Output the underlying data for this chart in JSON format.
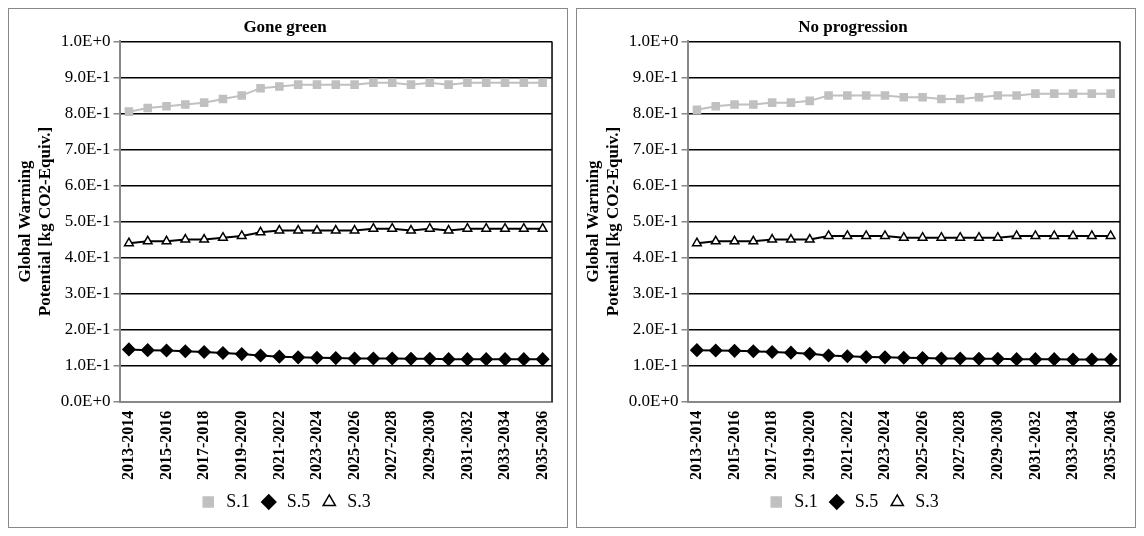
{
  "chart_data": [
    {
      "type": "line",
      "title": "Gone green",
      "ylabel": "Global Warming Potential [kg CO2-Equiv.]",
      "categories": [
        "2013-2014",
        null,
        "2015-2016",
        null,
        "2017-2018",
        null,
        "2019-2020",
        null,
        "2021-2022",
        null,
        "2023-2024",
        null,
        "2025-2026",
        null,
        "2027-2028",
        null,
        "2029-2030",
        null,
        "2031-2032",
        null,
        "2033-2034",
        null,
        "2035-2036"
      ],
      "ylim": [
        0,
        1
      ],
      "yticks": [
        {
          "value": 0,
          "label": "0.0E+0"
        },
        {
          "value": 0.1,
          "label": "1.0E-1"
        },
        {
          "value": 0.2,
          "label": "2.0E-1"
        },
        {
          "value": 0.3,
          "label": "3.0E-1"
        },
        {
          "value": 0.4,
          "label": "4.0E-1"
        },
        {
          "value": 0.5,
          "label": "5.0E-1"
        },
        {
          "value": 0.6,
          "label": "6.0E-1"
        },
        {
          "value": 0.7,
          "label": "7.0E-1"
        },
        {
          "value": 0.8,
          "label": "8.0E-1"
        },
        {
          "value": 0.9,
          "label": "9.0E-1"
        },
        {
          "value": 1,
          "label": "1.0E+0"
        }
      ],
      "grid": "y",
      "legend": "bottom",
      "series": [
        {
          "name": "S.1",
          "color": "#c0c0c0",
          "marker": "square",
          "values": [
            0.805,
            0.815,
            0.82,
            0.825,
            0.83,
            0.84,
            0.85,
            0.87,
            0.875,
            0.88,
            0.88,
            0.88,
            0.88,
            0.885,
            0.885,
            0.88,
            0.885,
            0.88,
            0.885,
            0.885,
            0.885,
            0.885,
            0.885
          ]
        },
        {
          "name": "S.5",
          "color": "#000000",
          "marker": "diamond",
          "values": [
            0.145,
            0.143,
            0.142,
            0.14,
            0.138,
            0.135,
            0.132,
            0.128,
            0.125,
            0.123,
            0.122,
            0.121,
            0.12,
            0.12,
            0.12,
            0.119,
            0.119,
            0.118,
            0.118,
            0.118,
            0.118,
            0.118,
            0.118
          ]
        },
        {
          "name": "S.3",
          "color": "#000000",
          "marker": "triangle",
          "values": [
            0.44,
            0.445,
            0.445,
            0.45,
            0.45,
            0.455,
            0.46,
            0.47,
            0.475,
            0.475,
            0.475,
            0.475,
            0.475,
            0.48,
            0.48,
            0.475,
            0.48,
            0.475,
            0.48,
            0.48,
            0.48,
            0.48,
            0.48
          ]
        }
      ]
    },
    {
      "type": "line",
      "title": "No progression",
      "ylabel": "Global Warming Potential [kg CO2-Equiv.]",
      "categories": [
        "2013-2014",
        null,
        "2015-2016",
        null,
        "2017-2018",
        null,
        "2019-2020",
        null,
        "2021-2022",
        null,
        "2023-2024",
        null,
        "2025-2026",
        null,
        "2027-2028",
        null,
        "2029-2030",
        null,
        "2031-2032",
        null,
        "2033-2034",
        null,
        "2035-2036"
      ],
      "ylim": [
        0,
        1
      ],
      "yticks": [
        {
          "value": 0,
          "label": "0.0E+0"
        },
        {
          "value": 0.1,
          "label": "1.0E-1"
        },
        {
          "value": 0.2,
          "label": "2.0E-1"
        },
        {
          "value": 0.3,
          "label": "3.0E-1"
        },
        {
          "value": 0.4,
          "label": "4.0E-1"
        },
        {
          "value": 0.5,
          "label": "5.0E-1"
        },
        {
          "value": 0.6,
          "label": "6.0E-1"
        },
        {
          "value": 0.7,
          "label": "7.0E-1"
        },
        {
          "value": 0.8,
          "label": "8.0E-1"
        },
        {
          "value": 0.9,
          "label": "9.0E-1"
        },
        {
          "value": 1,
          "label": "1.0E+0"
        }
      ],
      "grid": "y",
      "legend": "bottom",
      "series": [
        {
          "name": "S.1",
          "color": "#c0c0c0",
          "marker": "square",
          "values": [
            0.81,
            0.82,
            0.825,
            0.825,
            0.83,
            0.83,
            0.835,
            0.85,
            0.85,
            0.85,
            0.85,
            0.845,
            0.845,
            0.84,
            0.84,
            0.845,
            0.85,
            0.85,
            0.855,
            0.855,
            0.855,
            0.855,
            0.855
          ]
        },
        {
          "name": "S.5",
          "color": "#000000",
          "marker": "diamond",
          "values": [
            0.143,
            0.142,
            0.141,
            0.14,
            0.138,
            0.136,
            0.133,
            0.128,
            0.126,
            0.124,
            0.123,
            0.122,
            0.121,
            0.12,
            0.12,
            0.119,
            0.119,
            0.118,
            0.118,
            0.118,
            0.117,
            0.117,
            0.117
          ]
        },
        {
          "name": "S.3",
          "color": "#000000",
          "marker": "triangle",
          "values": [
            0.44,
            0.445,
            0.445,
            0.445,
            0.45,
            0.45,
            0.45,
            0.46,
            0.46,
            0.46,
            0.46,
            0.455,
            0.455,
            0.455,
            0.455,
            0.455,
            0.455,
            0.46,
            0.46,
            0.46,
            0.46,
            0.46,
            0.46
          ]
        }
      ]
    }
  ]
}
